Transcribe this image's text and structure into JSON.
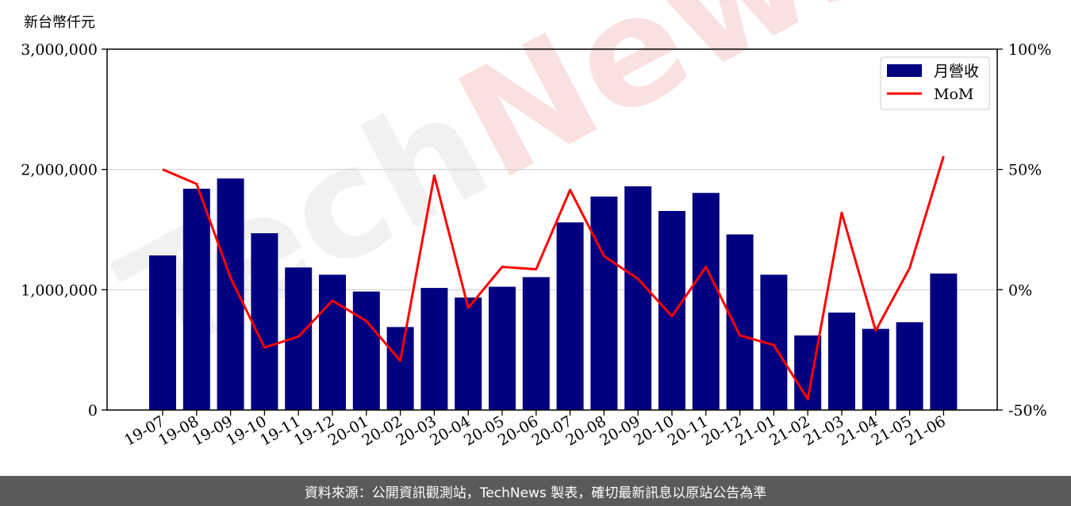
{
  "unit_label": "新台幣仟元",
  "footer_text": "資料來源：公開資訊觀測站，TechNews 製表，確切最新訊息以原站公告為準",
  "watermark": {
    "part1": "Tech",
    "part2": "News"
  },
  "colors": {
    "bar": "#000080",
    "line": "#ff0000",
    "grid": "#d0d0d0",
    "footer_bg": "#5a5a5a"
  },
  "chart_data": {
    "type": "bar",
    "categories": [
      "19-07",
      "19-08",
      "19-09",
      "19-10",
      "19-11",
      "19-12",
      "20-01",
      "20-02",
      "20-03",
      "20-04",
      "20-05",
      "20-06",
      "20-07",
      "20-08",
      "20-09",
      "20-10",
      "20-11",
      "20-12",
      "21-01",
      "21-02",
      "21-03",
      "21-04",
      "21-05",
      "21-06"
    ],
    "series": [
      {
        "name": "月營收",
        "type": "bar",
        "axis": "left",
        "values": [
          1285000,
          1840000,
          1925000,
          1470000,
          1185000,
          1125000,
          985000,
          690000,
          1015000,
          935000,
          1025000,
          1105000,
          1560000,
          1775000,
          1860000,
          1655000,
          1805000,
          1460000,
          1125000,
          620000,
          810000,
          675000,
          730000,
          1135000
        ]
      },
      {
        "name": "MoM",
        "type": "line",
        "axis": "right",
        "unit": "%",
        "values": [
          50,
          44,
          5,
          -24,
          -19.5,
          -4.5,
          -13,
          -29.5,
          47.5,
          -7.5,
          9.5,
          8.5,
          41.5,
          14,
          4.5,
          -11,
          9.5,
          -19,
          -23,
          -45.5,
          32,
          -17,
          9,
          55.5
        ]
      }
    ],
    "y_left": {
      "range": [
        0,
        3000000
      ],
      "ticks": [
        0,
        1000000,
        2000000,
        3000000
      ],
      "tick_labels": [
        "0",
        "1,000,000",
        "2,000,000",
        "3,000,000"
      ]
    },
    "y_right": {
      "range": [
        -50,
        100
      ],
      "ticks": [
        -50,
        0,
        50,
        100
      ],
      "tick_labels": [
        "-50%",
        "0%",
        "50%",
        "100%"
      ]
    },
    "grid": true,
    "legend_position": "top-right"
  }
}
